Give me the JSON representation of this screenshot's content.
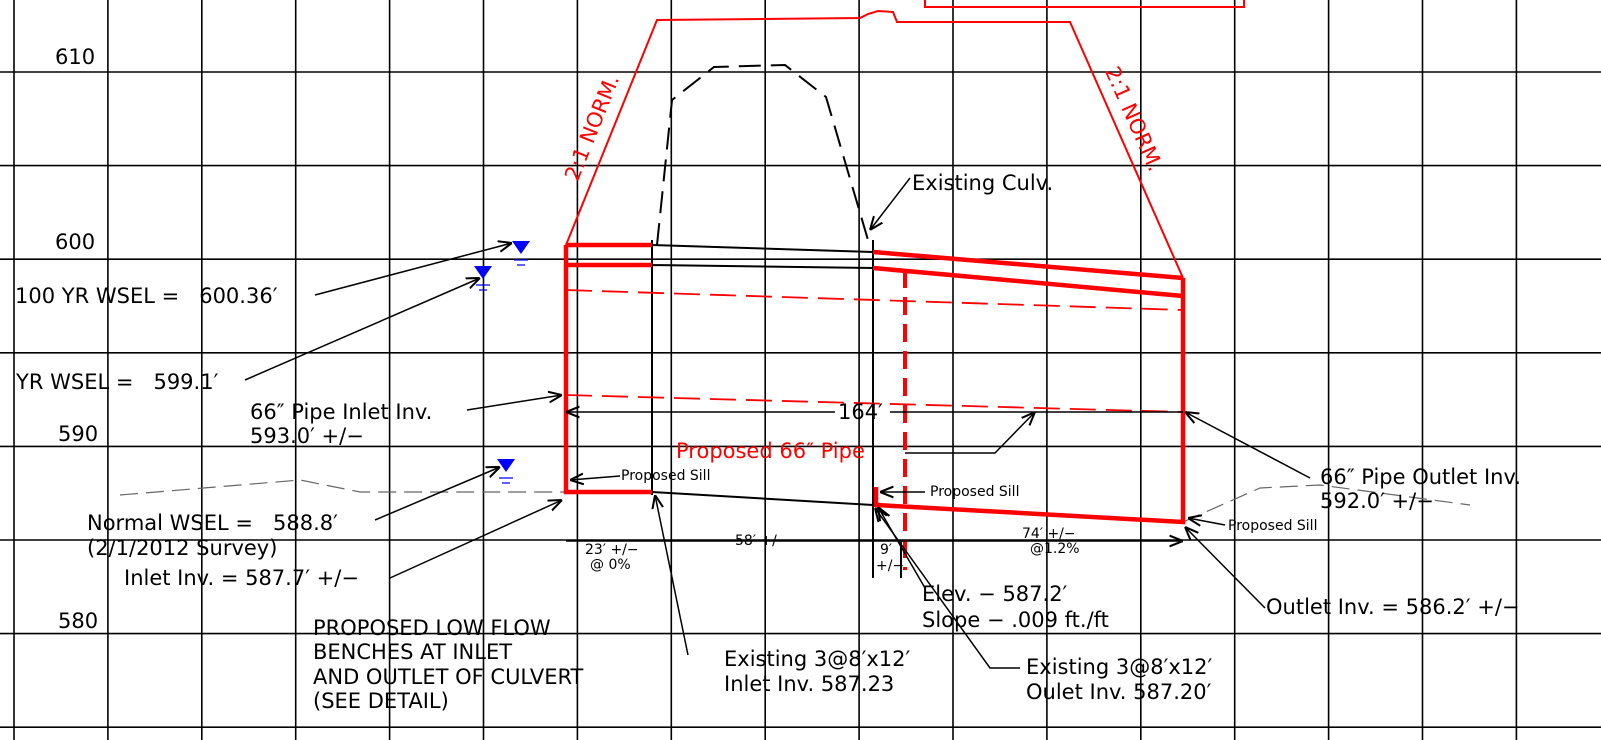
{
  "elevations": [
    "610",
    "600",
    "590",
    "580"
  ],
  "slope_left": "2:1 NORM.",
  "slope_right": "2:1 NORM.",
  "existing_culvert": "Existing Culv.",
  "wsel_100": "100 YR WSEL =   600.36′",
  "wsel_10": "YR WSEL =   599.1′",
  "inlet_pipe": {
    "label": "66″ Pipe Inlet Inv.",
    "value": "593.0′ +/−"
  },
  "length": "164′",
  "proposed_pipe": "Proposed 66″ Pipe",
  "sills": [
    "Proposed Sill",
    "Proposed Sill",
    "Proposed Sill"
  ],
  "outlet_pipe": {
    "label": "66″ Pipe Outlet Inv.",
    "value": "592.0′ +/−"
  },
  "normal_wsel": {
    "label": "Normal WSEL =   588.8′",
    "note": "(2/1/2012 Survey)"
  },
  "inlet_inv": "Inlet Inv. = 587.7′ +/−",
  "dims": {
    "d1": "23′ +/−",
    "d1_slope": "@ 0%",
    "d2": "58′ +/−",
    "d3": "9′",
    "d3_tol": "+/−",
    "d4": "74′ +/−",
    "d4_slope": "@1.2%"
  },
  "mid": {
    "elev": "Elev. − 587.2′",
    "slope": "Slope − .009 ft./ft"
  },
  "outlet_inv": "Outlet Inv. = 586.2′ +/−",
  "benches": [
    "PROPOSED LOW FLOW",
    "BENCHES AT INLET",
    "AND OUTLET OF CULVERT",
    "(SEE DETAIL)"
  ],
  "existing_inlet": {
    "label": "Existing 3@8′x12′",
    "inv": "Inlet Inv. 587.23"
  },
  "existing_outlet": {
    "label": "Existing 3@8′x12′",
    "inv": "Oulet Inv. 587.20′"
  }
}
